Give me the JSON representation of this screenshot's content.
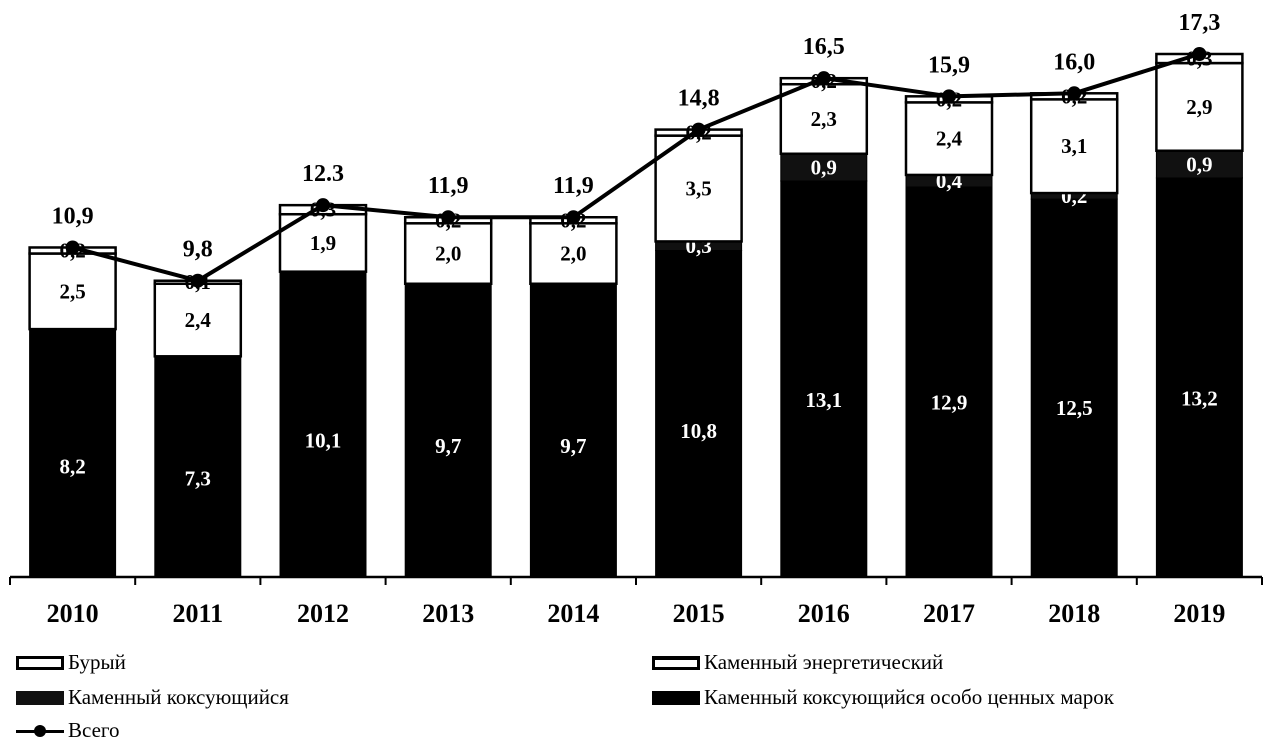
{
  "chart_data": {
    "type": "bar",
    "stacked": true,
    "categories": [
      "2010",
      "2011",
      "2012",
      "2013",
      "2014",
      "2015",
      "2016",
      "2017",
      "2018",
      "2019"
    ],
    "series": [
      {
        "name": "Каменный коксующийся особо ценных марок",
        "values": [
          8.2,
          7.3,
          10.1,
          9.7,
          9.7,
          10.8,
          13.1,
          12.9,
          12.5,
          13.2
        ],
        "labels": [
          "8,2",
          "7,3",
          "10,1",
          "9,7",
          "9,7",
          "10,8",
          "13,1",
          "12,9",
          "12,5",
          "13,2"
        ],
        "color": "#000000"
      },
      {
        "name": "Каменный коксующийся",
        "values": [
          0,
          0,
          0,
          0,
          0,
          0.3,
          0.9,
          0.4,
          0.2,
          0.9
        ],
        "labels": [
          "",
          "",
          "",
          "",
          "",
          "0,3",
          "0,9",
          "0,4",
          "0,2",
          "0,9"
        ],
        "color": "#111111"
      },
      {
        "name": "Каменный энергетический",
        "values": [
          2.5,
          2.4,
          1.9,
          2.0,
          2.0,
          3.5,
          2.3,
          2.4,
          3.1,
          2.9
        ],
        "labels": [
          "2,5",
          "2,4",
          "1,9",
          "2,0",
          "2,0",
          "3,5",
          "2,3",
          "2,4",
          "3,1",
          "2,9"
        ],
        "color": "#ffffff"
      },
      {
        "name": "Бурый",
        "values": [
          0.2,
          0.1,
          0.3,
          0.2,
          0.2,
          0.2,
          0.2,
          0.2,
          0.2,
          0.3
        ],
        "labels": [
          "0,2",
          "0,1",
          "0,3",
          "0,2",
          "0,2",
          "0,2",
          "0,2",
          "0,2",
          "0,2",
          "0,3"
        ],
        "color": "#ffffff"
      }
    ],
    "total": {
      "name": "Всего",
      "values": [
        10.9,
        9.8,
        12.3,
        11.9,
        11.9,
        14.8,
        16.5,
        15.9,
        16.0,
        17.3
      ],
      "labels": [
        "10,9",
        "9,8",
        "12.3",
        "11,9",
        "11,9",
        "14,8",
        "16,5",
        "15,9",
        "16,0",
        "17,3"
      ]
    },
    "title": "",
    "xlabel": "",
    "ylabel": "",
    "ylim": [
      0,
      17.3
    ],
    "grid": false,
    "legend_position": "bottom"
  },
  "legend": {
    "brown": "Бурый",
    "energy": "Каменный энергетический",
    "coking": "Каменный коксующийся",
    "premium": "Каменный коксующийся особо ценных марок",
    "total": "Всего"
  }
}
